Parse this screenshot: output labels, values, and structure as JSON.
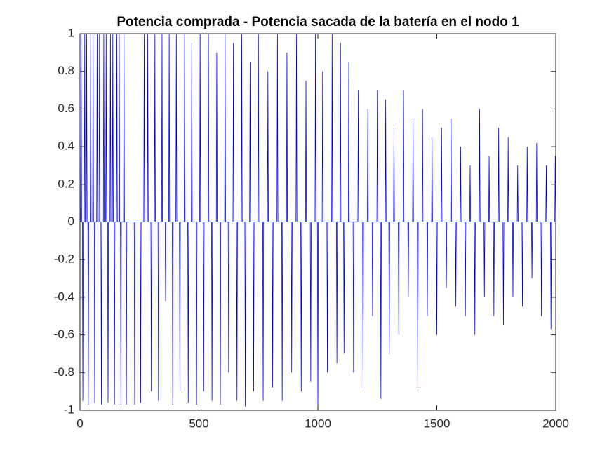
{
  "chart_data": {
    "type": "line",
    "title": "Potencia comprada - Potencia sacada de la batería en el nodo 1",
    "xlim": [
      0,
      2000
    ],
    "xticks": [
      0,
      500,
      1000,
      1500,
      2000
    ],
    "ylim": [
      -1,
      1
    ],
    "yticks": [
      -1,
      -0.8,
      -0.6,
      -0.4,
      -0.2,
      0,
      0.2,
      0.4,
      0.6,
      0.8,
      1
    ],
    "x": [
      0,
      3,
      5,
      7,
      10,
      12,
      14,
      18,
      20,
      22,
      26,
      28,
      30,
      33,
      35,
      37,
      43,
      45,
      47,
      53,
      55,
      57,
      60,
      62,
      64,
      70,
      72,
      74,
      80,
      82,
      84,
      88,
      90,
      92,
      98,
      100,
      102,
      108,
      110,
      112,
      116,
      118,
      120,
      126,
      128,
      130,
      136,
      138,
      140,
      143,
      145,
      147,
      153,
      155,
      157,
      163,
      165,
      167,
      170,
      172,
      174,
      183,
      185,
      187,
      193,
      195,
      197,
      228,
      230,
      232,
      253,
      255,
      257,
      268,
      270,
      272,
      283,
      285,
      287,
      298,
      300,
      302,
      313,
      315,
      317,
      328,
      330,
      332,
      343,
      345,
      347,
      358,
      360,
      362,
      373,
      375,
      377,
      388,
      390,
      392,
      403,
      405,
      407,
      418,
      420,
      422,
      438,
      440,
      442,
      453,
      455,
      457,
      468,
      470,
      472,
      488,
      490,
      492,
      503,
      505,
      507,
      518,
      520,
      522,
      538,
      540,
      542,
      553,
      555,
      557,
      573,
      575,
      577,
      588,
      590,
      592,
      608,
      610,
      612,
      623,
      625,
      627,
      643,
      645,
      647,
      658,
      660,
      662,
      678,
      680,
      682,
      693,
      695,
      697,
      713,
      715,
      717,
      728,
      730,
      732,
      748,
      750,
      752,
      768,
      770,
      772,
      788,
      790,
      792,
      808,
      810,
      812,
      828,
      830,
      832,
      848,
      850,
      852,
      868,
      870,
      872,
      888,
      890,
      892,
      908,
      910,
      912,
      928,
      930,
      932,
      948,
      950,
      952,
      968,
      970,
      972,
      988,
      990,
      992,
      998,
      1000,
      1002,
      1018,
      1020,
      1022,
      1038,
      1040,
      1042,
      1058,
      1060,
      1062,
      1078,
      1080,
      1082,
      1093,
      1095,
      1097,
      1108,
      1110,
      1112,
      1128,
      1130,
      1132,
      1148,
      1150,
      1152,
      1168,
      1170,
      1172,
      1188,
      1190,
      1192,
      1208,
      1210,
      1212,
      1228,
      1230,
      1232,
      1248,
      1250,
      1252,
      1263,
      1265,
      1267,
      1283,
      1285,
      1287,
      1298,
      1300,
      1302,
      1318,
      1320,
      1322,
      1338,
      1340,
      1342,
      1358,
      1360,
      1362,
      1378,
      1380,
      1382,
      1398,
      1400,
      1402,
      1418,
      1420,
      1422,
      1438,
      1440,
      1442,
      1458,
      1460,
      1462,
      1478,
      1480,
      1482,
      1498,
      1500,
      1502,
      1518,
      1520,
      1522,
      1538,
      1540,
      1542,
      1558,
      1560,
      1562,
      1578,
      1580,
      1582,
      1598,
      1600,
      1602,
      1618,
      1620,
      1622,
      1638,
      1640,
      1642,
      1658,
      1660,
      1662,
      1678,
      1680,
      1682,
      1698,
      1700,
      1702,
      1718,
      1720,
      1722,
      1738,
      1740,
      1742,
      1758,
      1760,
      1762,
      1778,
      1780,
      1782,
      1798,
      1800,
      1802,
      1818,
      1820,
      1822,
      1838,
      1840,
      1842,
      1858,
      1860,
      1862,
      1878,
      1880,
      1882,
      1898,
      1900,
      1902,
      1918,
      1920,
      1922,
      1938,
      1940,
      1942,
      1958,
      1960,
      1962,
      1978,
      1980,
      1982,
      1996,
      1998,
      2000
    ],
    "series": [
      {
        "color": "#0000ff",
        "values": [
          0,
          0,
          1,
          0,
          0,
          -0.95,
          0,
          0,
          1,
          0,
          0,
          1,
          0,
          0,
          -0.97,
          0,
          0,
          1,
          0,
          0,
          1,
          0,
          0,
          -0.96,
          0,
          0,
          1,
          0,
          0,
          1,
          0,
          0,
          -0.97,
          0,
          0,
          1,
          0,
          0,
          1,
          0,
          0,
          -0.96,
          0,
          0,
          1,
          0,
          0,
          1,
          0,
          0,
          -0.97,
          0,
          0,
          1,
          0,
          0,
          1,
          0,
          0,
          -0.97,
          0,
          0,
          1,
          0,
          0,
          -0.97,
          0,
          0,
          -0.97,
          0,
          0,
          -0.96,
          0,
          0,
          1,
          0,
          0,
          1,
          0,
          0,
          -0.9,
          0,
          0,
          1,
          0,
          0,
          -0.95,
          0,
          0,
          1,
          0,
          0,
          -0.42,
          0,
          0,
          1,
          0,
          0,
          -0.97,
          0,
          0,
          1,
          0,
          0,
          -0.9,
          0,
          0,
          1,
          0,
          0,
          -0.96,
          0,
          0,
          0.95,
          0,
          0,
          -0.97,
          0,
          0,
          1,
          0,
          0,
          -0.9,
          0,
          0,
          1,
          0,
          0,
          -0.95,
          0,
          0,
          0.9,
          0,
          0,
          -0.97,
          0,
          0,
          1,
          0,
          0,
          -0.8,
          0,
          0,
          0.95,
          0,
          0,
          -0.95,
          0,
          0,
          1,
          0,
          0,
          -0.98,
          0,
          0,
          0.85,
          0,
          0,
          -0.9,
          0,
          0,
          1,
          0,
          0,
          -0.95,
          0,
          0,
          0.8,
          0,
          0,
          -0.88,
          0,
          0,
          1,
          0,
          0,
          -0.95,
          0,
          0,
          0.9,
          0,
          0,
          -0.8,
          0,
          0,
          1,
          0,
          0,
          -0.9,
          0,
          0,
          0.75,
          0,
          0,
          -0.85,
          0,
          0,
          1,
          0,
          0,
          -1,
          0,
          0,
          0.8,
          0,
          0,
          -0.8,
          0,
          0,
          1,
          0,
          0,
          -0.75,
          0,
          0,
          0.95,
          0,
          0,
          -0.7,
          0,
          0,
          0.85,
          0,
          0,
          -0.8,
          0,
          0,
          0.7,
          0,
          0,
          -0.9,
          0,
          0,
          0.6,
          0,
          0,
          -0.5,
          0,
          0,
          0.7,
          0,
          0,
          -0.94,
          0,
          0,
          0.65,
          0,
          0,
          -0.7,
          0,
          0,
          0.5,
          0,
          0,
          -0.6,
          0,
          0,
          0.7,
          0,
          0,
          -0.4,
          0,
          0,
          0.55,
          0,
          0,
          -0.88,
          0,
          0,
          0.6,
          0,
          0,
          -0.5,
          0,
          0,
          0.45,
          0,
          0,
          -0.6,
          0,
          0,
          0.5,
          0,
          0,
          -0.35,
          0,
          0,
          0.55,
          0,
          0,
          -0.45,
          0,
          0,
          0.4,
          0,
          0,
          -0.5,
          0,
          0,
          0.3,
          0,
          0,
          -0.6,
          0,
          0,
          0.6,
          0,
          0,
          -0.4,
          0,
          0,
          0.35,
          0,
          0,
          -0.5,
          0,
          0,
          0.5,
          0,
          0,
          -0.55,
          0,
          0,
          0.45,
          0,
          0,
          -0.4,
          0,
          0,
          0.3,
          0,
          0,
          -0.45,
          0,
          0,
          0.4,
          0,
          0,
          -0.3,
          0,
          0,
          0.42,
          0,
          0,
          -0.5,
          0,
          0,
          0.3,
          0,
          0,
          -0.57,
          0,
          0,
          0.35,
          0
        ]
      }
    ]
  }
}
